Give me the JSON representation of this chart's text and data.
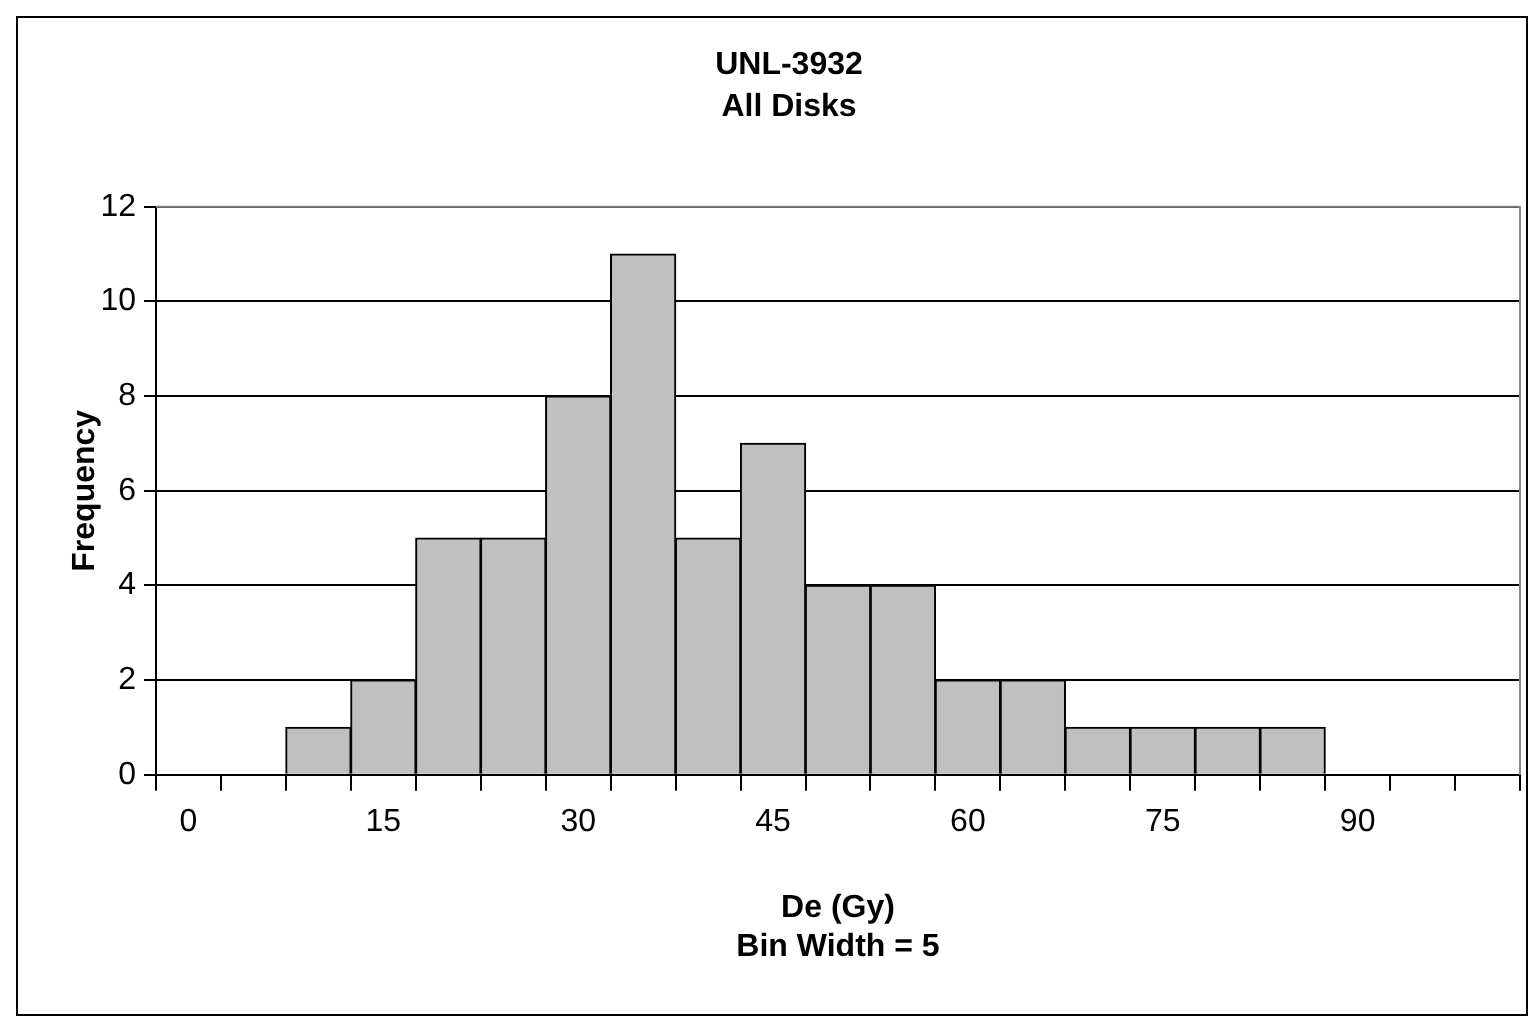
{
  "chart_data": {
    "type": "bar",
    "title": "UNL-3932",
    "subtitle": "All Disks",
    "xlabel": "De (Gy)\nBin Width = 5",
    "ylabel": "Frequency",
    "categories": [
      "0",
      null,
      null,
      "15",
      null,
      null,
      "30",
      null,
      null,
      "45",
      null,
      null,
      "60",
      null,
      null,
      "75",
      null,
      null,
      "90",
      null,
      null
    ],
    "values": [
      0,
      0,
      1,
      2,
      5,
      5,
      8,
      11,
      5,
      7,
      4,
      4,
      2,
      2,
      1,
      1,
      1,
      1,
      0,
      0,
      0
    ],
    "color": "#c0c0c0",
    "ylim": [
      0,
      12
    ],
    "yticks": [
      0,
      2,
      4,
      6,
      8,
      10,
      12
    ],
    "grid": "y",
    "legend": false
  }
}
